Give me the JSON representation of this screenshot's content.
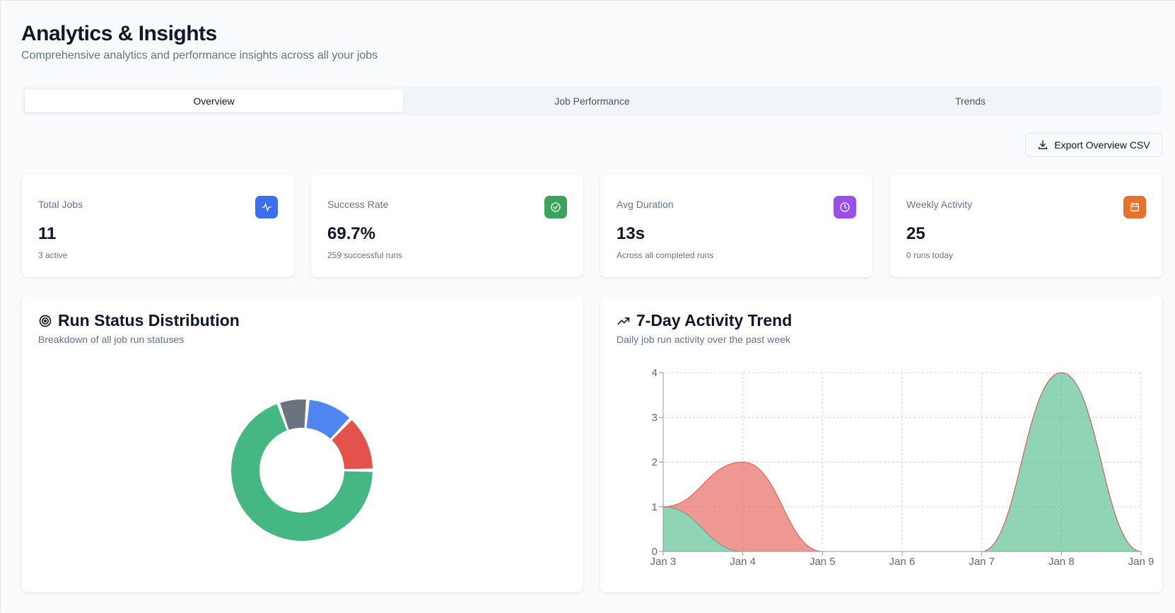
{
  "header": {
    "title": "Analytics & Insights",
    "subtitle": "Comprehensive analytics and performance insights across all your jobs"
  },
  "tabs": [
    {
      "label": "Overview",
      "active": true
    },
    {
      "label": "Job Performance",
      "active": false
    },
    {
      "label": "Trends",
      "active": false
    }
  ],
  "export_label": "Export Overview CSV",
  "stats": [
    {
      "label": "Total Jobs",
      "value": "11",
      "note": "3 active",
      "icon": "activity-icon",
      "color": "#3b6ff0"
    },
    {
      "label": "Success Rate",
      "value": "69.7%",
      "note": "259 successful runs",
      "icon": "check-circle-icon",
      "color": "#3aa55a"
    },
    {
      "label": "Avg Duration",
      "value": "13s",
      "note": "Across all completed runs",
      "icon": "clock-icon",
      "color": "#9d4ee8"
    },
    {
      "label": "Weekly Activity",
      "value": "25",
      "note": "0 runs today",
      "icon": "calendar-icon",
      "color": "#e8702a"
    }
  ],
  "distribution": {
    "title": "Run Status Distribution",
    "subtitle": "Breakdown of all job run statuses"
  },
  "trend": {
    "title": "7-Day Activity Trend",
    "subtitle": "Daily job run activity over the past week"
  },
  "chart_data": [
    {
      "type": "pie",
      "donut": true,
      "values": [
        259,
        25,
        40,
        48
      ],
      "colors": [
        "#45b782",
        "#6b7280",
        "#4f86f0",
        "#e4534b"
      ]
    },
    {
      "type": "area",
      "stacked": true,
      "categories": [
        "Jan 3",
        "Jan 4",
        "Jan 5",
        "Jan 6",
        "Jan 7",
        "Jan 8",
        "Jan 9"
      ],
      "ylim": [
        0,
        4
      ],
      "yticks": [
        0,
        1,
        2,
        3,
        4
      ],
      "grid": true,
      "series": [
        {
          "values": [
            1,
            0,
            0,
            0,
            0,
            4,
            0
          ],
          "color": "#45b782"
        },
        {
          "values": [
            0,
            2,
            0,
            0,
            0,
            0,
            0
          ],
          "color": "#e4534b"
        }
      ]
    }
  ]
}
